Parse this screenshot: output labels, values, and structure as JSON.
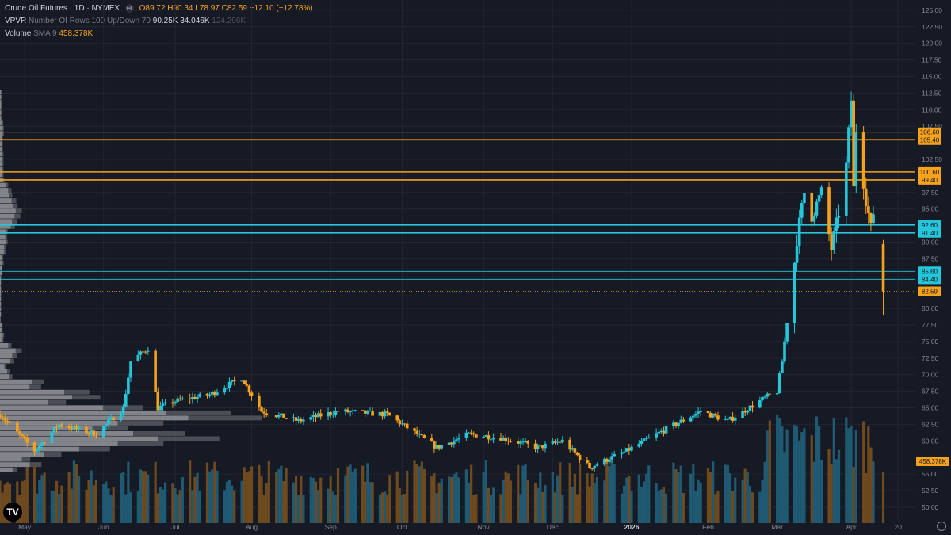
{
  "header": {
    "symbol": "Crude Oil Futures · 1D · NYMEX",
    "eye_glyph": "⊝",
    "ohlc": {
      "o_label": "O",
      "o": "89.72",
      "h_label": "H",
      "h": "90.34",
      "l_label": "L",
      "l": "78.97",
      "c_label": "C",
      "c": "82.59",
      "change": "−12.10 (−12.78%)"
    },
    "vpvr_label": "VPVR",
    "vpvr_params": "Number Of Rows 100 Up/Down 70",
    "vpvr_values": "90.25K 34.046K",
    "vpvr_total": "124.296K",
    "volume_label": "Volume",
    "volume_params": "SMA 9",
    "volume_value": "458.378K"
  },
  "colors": {
    "background": "#161a25",
    "up": "#26c6da",
    "down": "#f7a21b",
    "grid": "#222633",
    "vol_up": "#1f5a72",
    "vol_down": "#6e4a1e",
    "vpvr_up": "#5d6068",
    "vpvr_down": "#a7a8ac",
    "resistance": "#f7a21b",
    "support": "#26c6da"
  },
  "chart_data": {
    "type": "candlestick",
    "y_axis_ticks": [
      "125.00",
      "122.50",
      "120.00",
      "117.50",
      "115.00",
      "112.50",
      "110.00",
      "107.50",
      "102.50",
      "97.50",
      "95.00",
      "90.00",
      "87.50",
      "80.00",
      "77.50",
      "75.00",
      "72.50",
      "70.00",
      "67.50",
      "65.00",
      "62.50",
      "60.00",
      "55.00",
      "52.50",
      "50.00"
    ],
    "ylim": [
      48.2,
      126.3
    ],
    "x_axis_ticks": [
      {
        "label": "May",
        "date": "2025-05-01",
        "bold": false
      },
      {
        "label": "Jun",
        "date": "2025-06-02",
        "bold": false
      },
      {
        "label": "Jul",
        "date": "2025-07-01",
        "bold": false
      },
      {
        "label": "Aug",
        "date": "2025-08-01",
        "bold": false
      },
      {
        "label": "Sep",
        "date": "2025-09-02",
        "bold": false
      },
      {
        "label": "Oct",
        "date": "2025-10-01",
        "bold": false
      },
      {
        "label": "Nov",
        "date": "2025-11-03",
        "bold": false
      },
      {
        "label": "Dec",
        "date": "2025-12-01",
        "bold": false
      },
      {
        "label": "2026",
        "date": "2026-01-02",
        "bold": true
      },
      {
        "label": "Feb",
        "date": "2026-02-02",
        "bold": false
      },
      {
        "label": "Mar",
        "date": "2026-03-02",
        "bold": false
      },
      {
        "label": "Apr",
        "date": "2026-04-01",
        "bold": false
      },
      {
        "label": "20",
        "date": "2026-04-20",
        "bold": false
      }
    ],
    "xlim": [
      "2025-04-21",
      "2026-04-27"
    ],
    "levels": [
      {
        "value": 106.6,
        "label": "106.60",
        "kind": "resistance",
        "weight": "thin"
      },
      {
        "value": 105.4,
        "label": "105.40",
        "kind": "resistance",
        "weight": "thin"
      },
      {
        "value": 100.6,
        "label": "100.60",
        "kind": "resistance",
        "weight": "thick"
      },
      {
        "value": 99.4,
        "label": "99.40",
        "kind": "resistance",
        "weight": "thick"
      },
      {
        "value": 92.6,
        "label": "92.60",
        "kind": "support",
        "weight": "thick"
      },
      {
        "value": 91.4,
        "label": "91.40",
        "kind": "support",
        "weight": "thick"
      },
      {
        "value": 85.6,
        "label": "85.60",
        "kind": "support",
        "weight": "thin"
      },
      {
        "value": 84.4,
        "label": "84.40",
        "kind": "support",
        "weight": "thin"
      }
    ],
    "last_price": {
      "value": 82.59,
      "label": "82.59"
    },
    "volume_tag": {
      "label": "458.378K"
    },
    "price_keypoints": [
      [
        "2025-04-21",
        64.0
      ],
      [
        "2025-05-05",
        58.5
      ],
      [
        "2025-05-15",
        62.5
      ],
      [
        "2025-05-30",
        61.0
      ],
      [
        "2025-06-10",
        65.0
      ],
      [
        "2025-06-13",
        72.0
      ],
      [
        "2025-06-20",
        74.0
      ],
      [
        "2025-06-24",
        65.0
      ],
      [
        "2025-07-01",
        66.0
      ],
      [
        "2025-07-15",
        67.0
      ],
      [
        "2025-07-28",
        69.5
      ],
      [
        "2025-08-05",
        64.5
      ],
      [
        "2025-08-20",
        63.0
      ],
      [
        "2025-09-05",
        64.5
      ],
      [
        "2025-09-25",
        64.0
      ],
      [
        "2025-10-03",
        62.0
      ],
      [
        "2025-10-15",
        59.0
      ],
      [
        "2025-10-28",
        61.0
      ],
      [
        "2025-11-10",
        60.5
      ],
      [
        "2025-11-25",
        59.0
      ],
      [
        "2025-12-05",
        60.0
      ],
      [
        "2025-12-16",
        56.0
      ],
      [
        "2025-12-31",
        58.5
      ],
      [
        "2026-01-12",
        61.0
      ],
      [
        "2026-01-30",
        64.5
      ],
      [
        "2026-02-10",
        63.0
      ],
      [
        "2026-02-25",
        66.5
      ],
      [
        "2026-03-02",
        67.5
      ],
      [
        "2026-03-04",
        72.0
      ],
      [
        "2026-03-06",
        78.0
      ],
      [
        "2026-03-09",
        87.0
      ],
      [
        "2026-03-10",
        90.5
      ],
      [
        "2026-03-13",
        97.5
      ],
      [
        "2026-03-16",
        94.0
      ],
      [
        "2026-03-20",
        97.5
      ],
      [
        "2026-03-24",
        89.0
      ],
      [
        "2026-03-27",
        94.5
      ],
      [
        "2026-03-30",
        101.5
      ],
      [
        "2026-04-01",
        111.5
      ],
      [
        "2026-04-02",
        98.0
      ],
      [
        "2026-04-03",
        107.0
      ],
      [
        "2026-04-07",
        96.5
      ],
      [
        "2026-04-09",
        92.0
      ],
      [
        "2026-04-10",
        94.5
      ],
      [
        "2026-04-13",
        89.72
      ]
    ],
    "last_candle": {
      "date": "2026-04-14",
      "open": 89.72,
      "high": 90.34,
      "low": 78.97,
      "close": 82.59
    }
  },
  "legend_placement": "top-left",
  "grid": true
}
